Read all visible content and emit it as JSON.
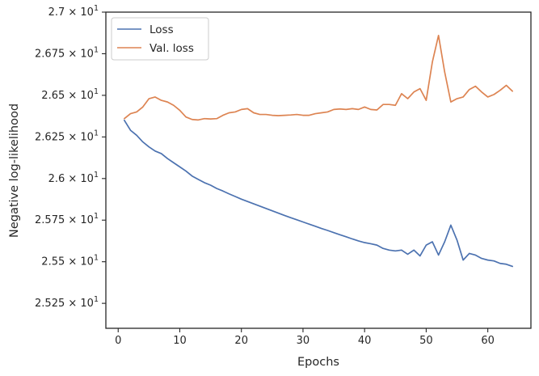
{
  "chart_data": {
    "type": "line",
    "xlabel": "Epochs",
    "ylabel": "Negative log-likelihood",
    "xlim": [
      -2,
      67
    ],
    "ylim": [
      25.1,
      27.0
    ],
    "xticks": [
      0,
      10,
      20,
      30,
      40,
      50,
      60
    ],
    "xtick_labels": [
      "0",
      "10",
      "20",
      "30",
      "40",
      "50",
      "60"
    ],
    "yticks": [
      25.25,
      25.5,
      25.75,
      26.0,
      26.25,
      26.5,
      26.75,
      27.0
    ],
    "ytick_labels": [
      {
        "mantissa": "2.525",
        "exponent": "1"
      },
      {
        "mantissa": "2.55",
        "exponent": "1"
      },
      {
        "mantissa": "2.575",
        "exponent": "1"
      },
      {
        "mantissa": "2.6",
        "exponent": "1"
      },
      {
        "mantissa": "2.625",
        "exponent": "1"
      },
      {
        "mantissa": "2.65",
        "exponent": "1"
      },
      {
        "mantissa": "2.675",
        "exponent": "1"
      },
      {
        "mantissa": "2.7",
        "exponent": "1"
      }
    ],
    "grid": false,
    "legend_position": "top-left",
    "x": [
      1,
      2,
      3,
      4,
      5,
      6,
      7,
      8,
      9,
      10,
      11,
      12,
      13,
      14,
      15,
      16,
      17,
      18,
      19,
      20,
      21,
      22,
      23,
      24,
      25,
      26,
      27,
      28,
      29,
      30,
      31,
      32,
      33,
      34,
      35,
      36,
      37,
      38,
      39,
      40,
      41,
      42,
      43,
      44,
      45,
      46,
      47,
      48,
      49,
      50,
      51,
      52,
      53,
      54,
      55,
      56,
      57,
      58,
      59,
      60,
      61,
      62,
      63,
      64
    ],
    "series": [
      {
        "name": "Loss",
        "color": "#4c72b0",
        "values": [
          26.35,
          26.29,
          26.26,
          26.22,
          26.19,
          26.165,
          26.15,
          26.12,
          26.095,
          26.07,
          26.045,
          26.015,
          25.995,
          25.975,
          25.96,
          25.94,
          25.925,
          25.908,
          25.892,
          25.876,
          25.862,
          25.848,
          25.834,
          25.82,
          25.806,
          25.792,
          25.778,
          25.765,
          25.752,
          25.739,
          25.726,
          25.713,
          25.7,
          25.688,
          25.675,
          25.662,
          25.65,
          25.637,
          25.625,
          25.615,
          25.608,
          25.6,
          25.58,
          25.57,
          25.565,
          25.57,
          25.545,
          25.57,
          25.535,
          25.6,
          25.62,
          25.54,
          25.62,
          25.72,
          25.63,
          25.51,
          25.55,
          25.54,
          25.52,
          25.51,
          25.505,
          25.49,
          25.485,
          25.472
        ]
      },
      {
        "name": "Val. loss",
        "color": "#dd8452",
        "values": [
          26.36,
          26.39,
          26.4,
          26.43,
          26.48,
          26.49,
          26.47,
          26.46,
          26.44,
          26.41,
          26.37,
          26.355,
          26.352,
          26.36,
          26.358,
          26.36,
          26.38,
          26.395,
          26.4,
          26.415,
          26.42,
          26.395,
          26.385,
          26.385,
          26.38,
          26.378,
          26.38,
          26.382,
          26.385,
          26.38,
          26.38,
          26.39,
          26.395,
          26.4,
          26.415,
          26.418,
          26.415,
          26.42,
          26.415,
          26.43,
          26.415,
          26.412,
          26.445,
          26.445,
          26.44,
          26.51,
          26.48,
          26.52,
          26.54,
          26.47,
          26.7,
          26.86,
          26.64,
          26.46,
          26.48,
          26.49,
          26.535,
          26.555,
          26.52,
          26.49,
          26.505,
          26.53,
          26.56,
          26.525
        ]
      }
    ]
  }
}
